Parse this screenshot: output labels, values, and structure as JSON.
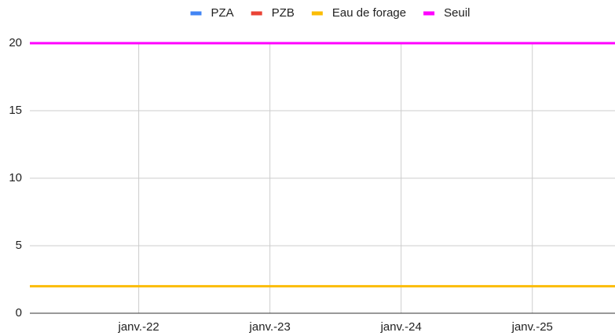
{
  "chart_data": {
    "type": "line",
    "x": [
      2021.17,
      2025.63
    ],
    "series": [
      {
        "name": "PZA",
        "color": "#4285f4",
        "values": [
          null,
          null
        ]
      },
      {
        "name": "PZB",
        "color": "#ea4335",
        "values": [
          null,
          null
        ]
      },
      {
        "name": "Eau de forage",
        "color": "#fbbc04",
        "values": [
          2,
          2
        ]
      },
      {
        "name": "Seuil",
        "color": "#ff00ff",
        "values": [
          20,
          20
        ]
      }
    ],
    "xlim": [
      2021.17,
      2025.63
    ],
    "xticks": [
      {
        "value": 2022,
        "label": "janv.-22"
      },
      {
        "value": 2023,
        "label": "janv.-23"
      },
      {
        "value": 2024,
        "label": "janv.-24"
      },
      {
        "value": 2025,
        "label": "janv.-25"
      }
    ],
    "ylim": [
      0,
      20
    ],
    "yticks": [
      0,
      5,
      10,
      15,
      20
    ],
    "grid": true,
    "legend": "top"
  }
}
